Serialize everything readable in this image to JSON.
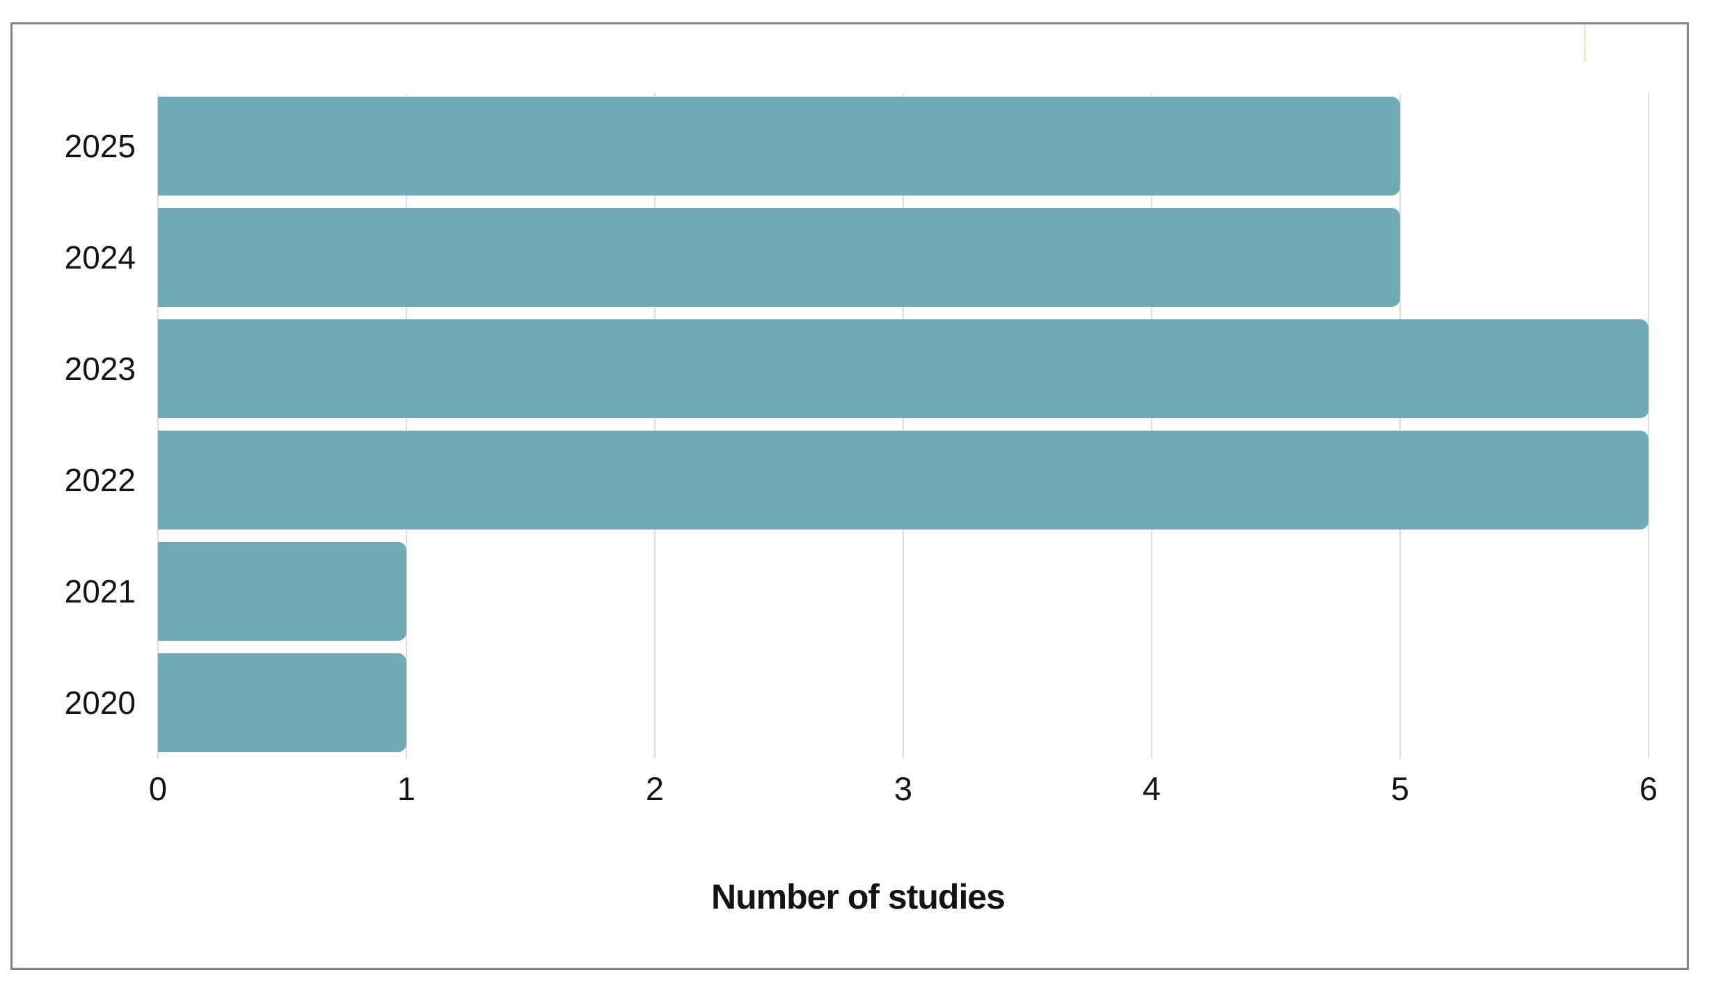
{
  "chart_data": {
    "type": "bar",
    "orientation": "horizontal",
    "title": "",
    "xlabel": "Number of studies",
    "ylabel": "",
    "categories": [
      "2025",
      "2024",
      "2023",
      "2022",
      "2021",
      "2020"
    ],
    "values": [
      5,
      5,
      6,
      6,
      1,
      1
    ],
    "xlim": [
      0,
      6
    ],
    "xticks": [
      "0",
      "1",
      "2",
      "3",
      "4",
      "5",
      "6"
    ],
    "grid": "vertical",
    "legend": "none",
    "colors": {
      "bar": "#6FABB7",
      "gridline": "#dcdcdc",
      "text": "#141414",
      "frame_border": "#868686",
      "background": "#ffffff",
      "artifact": "#f9e6d2"
    }
  }
}
